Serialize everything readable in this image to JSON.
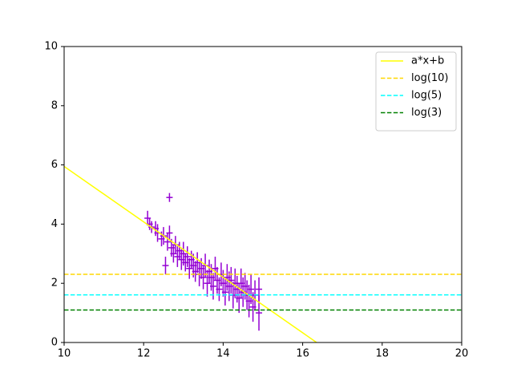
{
  "chart_data": {
    "type": "errorbar",
    "xlim": [
      10,
      20
    ],
    "xticks": [
      10,
      12,
      14,
      16,
      18,
      20
    ],
    "ylim": [
      0,
      10
    ],
    "yticks": [
      0,
      2,
      4,
      6,
      8,
      10
    ],
    "legend": "upper right",
    "series": [
      {
        "name": "a*x+b",
        "color": "#ffff00",
        "style": "solid",
        "x": [
          10,
          16.35
        ],
        "values": [
          5.95,
          0
        ]
      },
      {
        "name": "log(10)",
        "color": "#ffd700",
        "style": "dashed",
        "x": [
          10,
          20
        ],
        "values": [
          2.303,
          2.303
        ]
      },
      {
        "name": "log(5)",
        "color": "#00ffff",
        "style": "dashed",
        "x": [
          10,
          20
        ],
        "values": [
          1.609,
          1.609
        ]
      },
      {
        "name": "log(3)",
        "color": "#008000",
        "style": "dashed",
        "x": [
          10,
          20
        ],
        "values": [
          1.099,
          1.099
        ]
      }
    ],
    "points": {
      "color": "#9400d3",
      "x": [
        12.1,
        12.15,
        12.2,
        12.3,
        12.35,
        12.45,
        12.5,
        12.55,
        12.6,
        12.65,
        12.65,
        12.7,
        12.75,
        12.8,
        12.85,
        12.9,
        12.95,
        13.0,
        13.05,
        13.1,
        13.15,
        13.2,
        13.25,
        13.3,
        13.35,
        13.4,
        13.45,
        13.5,
        13.55,
        13.6,
        13.65,
        13.7,
        13.75,
        13.8,
        13.85,
        13.9,
        13.95,
        14.0,
        14.05,
        14.1,
        14.15,
        14.2,
        14.25,
        14.3,
        14.35,
        14.4,
        14.45,
        14.5,
        14.55,
        14.6,
        14.65,
        14.7,
        14.75,
        14.8,
        14.9,
        14.9
      ],
      "values": [
        4.2,
        4.0,
        3.9,
        3.85,
        3.7,
        3.5,
        3.6,
        2.6,
        3.4,
        4.9,
        3.7,
        3.2,
        3.0,
        3.3,
        2.9,
        3.1,
        2.8,
        3.0,
        2.7,
        2.9,
        2.5,
        2.8,
        2.6,
        2.4,
        2.7,
        2.3,
        2.5,
        2.2,
        2.6,
        2.0,
        2.4,
        2.2,
        1.9,
        2.5,
        2.1,
        1.8,
        2.3,
        2.0,
        1.7,
        2.2,
        1.9,
        2.1,
        1.6,
        2.0,
        1.8,
        1.5,
        2.0,
        1.7,
        1.9,
        1.6,
        1.4,
        1.8,
        1.2,
        1.6,
        1.8,
        1.0
      ],
      "errors": [
        0.25,
        0.2,
        0.2,
        0.25,
        0.3,
        0.25,
        0.3,
        0.3,
        0.3,
        0.15,
        0.25,
        0.3,
        0.3,
        0.3,
        0.35,
        0.3,
        0.35,
        0.4,
        0.3,
        0.35,
        0.35,
        0.3,
        0.4,
        0.35,
        0.35,
        0.4,
        0.35,
        0.4,
        0.4,
        0.45,
        0.4,
        0.45,
        0.45,
        0.4,
        0.45,
        0.4,
        0.4,
        0.45,
        0.45,
        0.45,
        0.5,
        0.45,
        0.45,
        0.5,
        0.45,
        0.5,
        0.5,
        0.5,
        0.45,
        0.5,
        0.55,
        0.5,
        0.5,
        0.5,
        0.4,
        0.6
      ]
    }
  }
}
